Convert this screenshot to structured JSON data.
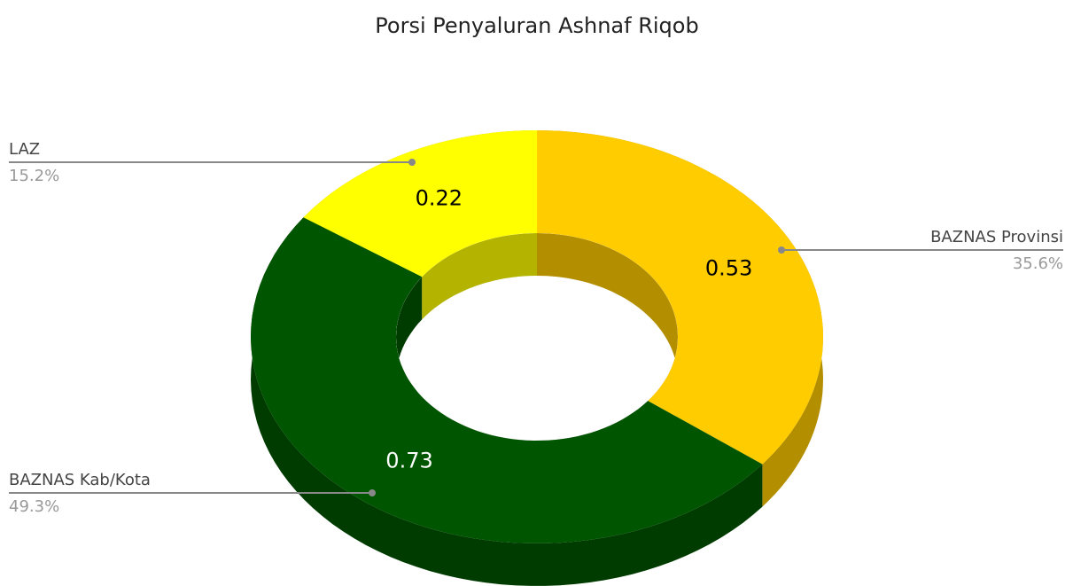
{
  "chart_data": {
    "type": "donut3d",
    "title": "Porsi Penyaluran Ashnaf Riqob",
    "categories": [
      "BAZNAS Provinsi",
      "BAZNAS Kab/Kota",
      "LAZ"
    ],
    "values": [
      0.53,
      0.73,
      0.22
    ],
    "percents": [
      35.6,
      49.3,
      15.2
    ],
    "percent_labels": [
      "35.6%",
      "49.3%",
      "15.2%"
    ],
    "colors": [
      "#ffcc00",
      "#005500",
      "#ffff00"
    ]
  }
}
